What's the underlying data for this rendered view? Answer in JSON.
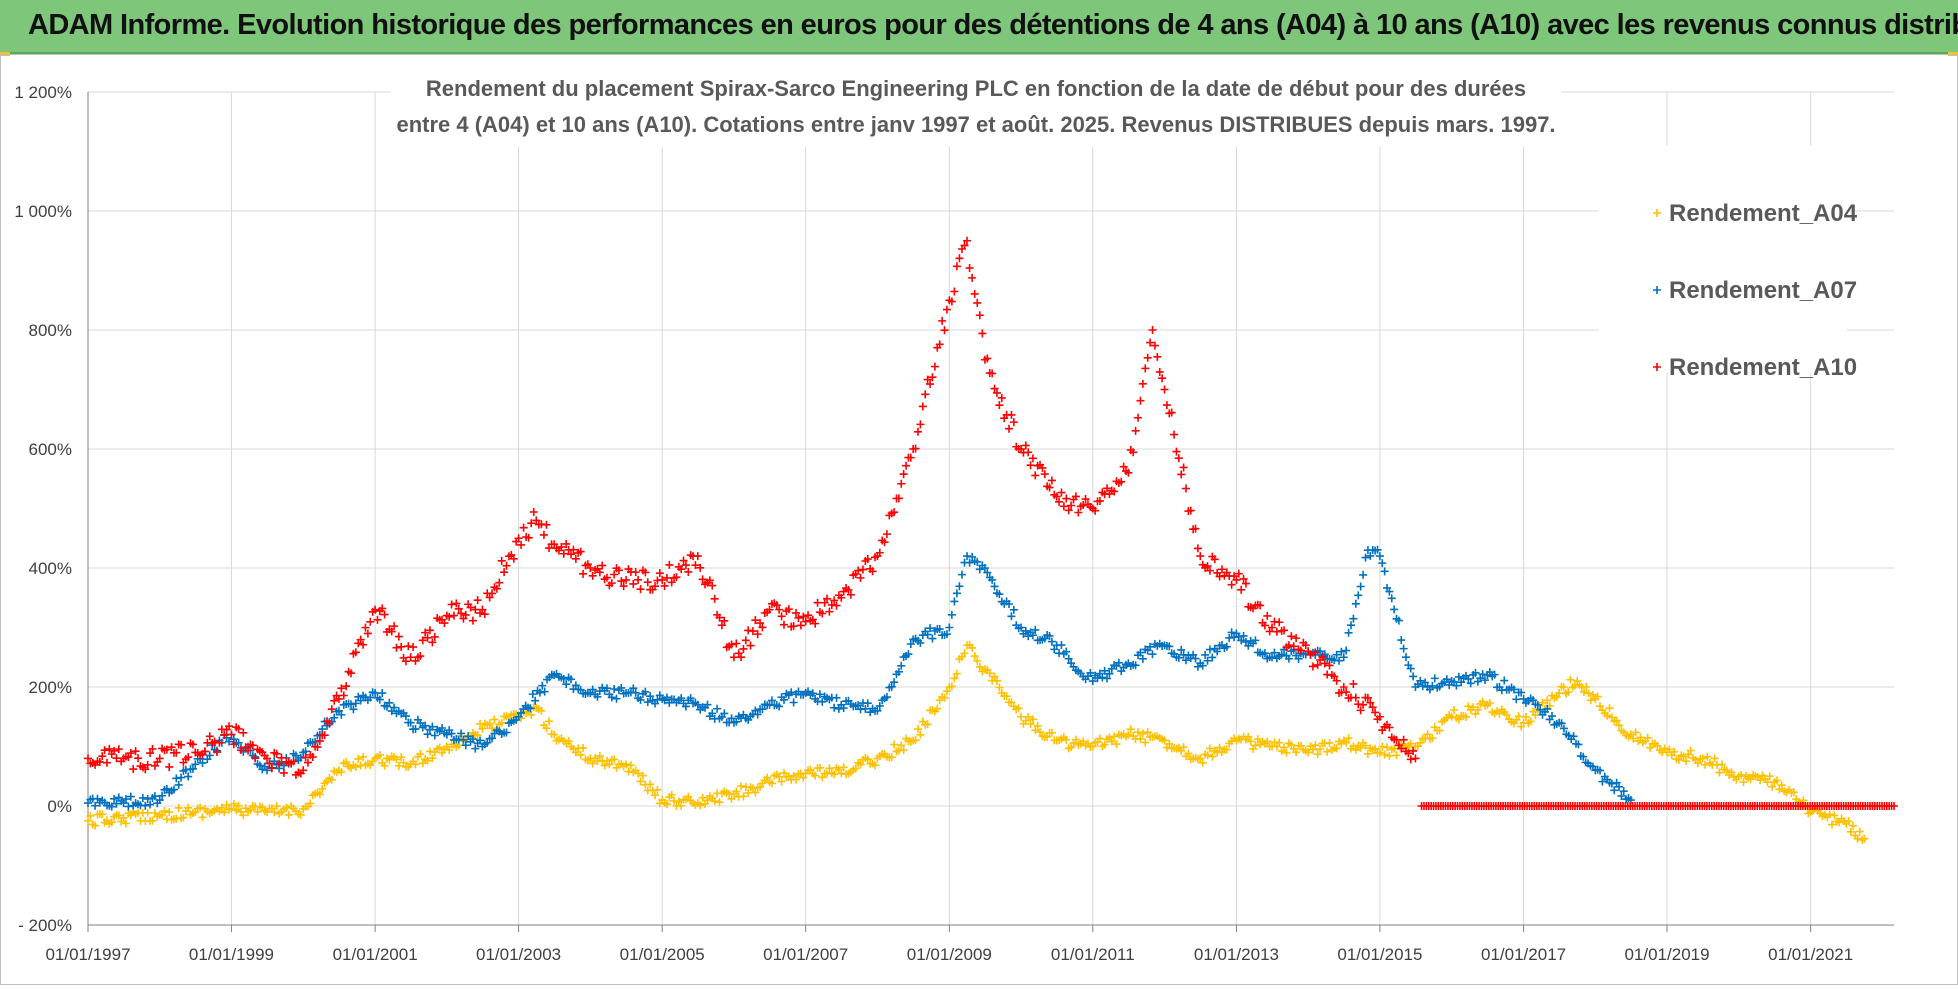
{
  "banner": {
    "title": "ADAM Informe. Evolution historique des performances en euros pour des détentions de 4 ans (A04) à 10 ans (A10) avec les revenus connus distribués"
  },
  "colors": {
    "banner_bg": "#7dc67a",
    "A04": "#ffc000",
    "A07": "#0070c0",
    "A10": "#ff0000",
    "grid": "#d9d9d9"
  },
  "chart_data": {
    "type": "scatter",
    "title_line1": "Rendement du placement Spirax-Sarco Engineering PLC en fonction de la date de début pour des durées",
    "title_line2": "entre 4 (A04) et 10 ans (A10). Cotations entre janv 1997 et août. 2025. Revenus DISTRIBUES depuis mars. 1997.",
    "marker": "+",
    "legend_position": "top-right",
    "grid": true,
    "xlim": [
      "1997-01-01",
      "2022-03-01"
    ],
    "ylim": [
      -200,
      1200
    ],
    "y_ticks": [
      -200,
      0,
      200,
      400,
      600,
      800,
      1000,
      1200
    ],
    "y_tick_labels": [
      "- 200%",
      "0%",
      "200%",
      "400%",
      "600%",
      "800%",
      "1 000%",
      "1 200%"
    ],
    "x_tick_labels": [
      "01/01/1997",
      "01/01/1999",
      "01/01/2001",
      "01/01/2003",
      "01/01/2005",
      "01/01/2007",
      "01/01/2009",
      "01/01/2011",
      "01/01/2013",
      "01/01/2015",
      "01/01/2017",
      "01/01/2019",
      "01/01/2021"
    ],
    "series": [
      {
        "name": "Rendement_A04",
        "color": "#ffc000",
        "x": [
          "1997-01-01",
          "1997-07-01",
          "1998-01-01",
          "1998-07-01",
          "1999-01-01",
          "1999-07-01",
          "2000-01-01",
          "2000-07-01",
          "2001-01-01",
          "2001-07-01",
          "2002-01-01",
          "2002-07-01",
          "2003-01-01",
          "2003-04-01",
          "2003-07-01",
          "2004-01-01",
          "2004-07-01",
          "2005-01-01",
          "2005-07-01",
          "2006-01-01",
          "2006-07-01",
          "2007-01-01",
          "2007-07-01",
          "2008-01-01",
          "2008-07-01",
          "2009-01-01",
          "2009-04-01",
          "2009-07-01",
          "2010-01-01",
          "2010-07-01",
          "2011-01-01",
          "2011-07-01",
          "2012-01-01",
          "2012-07-01",
          "2013-01-01",
          "2013-07-01",
          "2014-01-01",
          "2014-07-01",
          "2015-01-01",
          "2015-07-01",
          "2016-01-01",
          "2016-07-01",
          "2017-01-01",
          "2017-07-01",
          "2017-10-01",
          "2018-01-01",
          "2018-07-01",
          "2019-01-01",
          "2019-07-01",
          "2020-01-01",
          "2020-07-01",
          "2021-01-01",
          "2021-07-01",
          "2021-10-01"
        ],
        "values": [
          -25,
          -20,
          -15,
          -10,
          -5,
          -10,
          -5,
          60,
          80,
          70,
          100,
          130,
          150,
          165,
          120,
          80,
          70,
          10,
          5,
          20,
          40,
          55,
          55,
          80,
          110,
          200,
          270,
          230,
          150,
          110,
          100,
          120,
          110,
          80,
          110,
          100,
          90,
          110,
          90,
          100,
          150,
          170,
          140,
          190,
          210,
          180,
          120,
          90,
          80,
          50,
          40,
          -10,
          -30,
          -55
        ]
      },
      {
        "name": "Rendement_A07",
        "color": "#0070c0",
        "x": [
          "1997-01-01",
          "1997-07-01",
          "1998-01-01",
          "1998-07-01",
          "1999-01-01",
          "1999-07-01",
          "2000-01-01",
          "2000-07-01",
          "2001-01-01",
          "2001-07-01",
          "2002-01-01",
          "2002-07-01",
          "2003-01-01",
          "2003-07-01",
          "2004-01-01",
          "2004-07-01",
          "2005-01-01",
          "2005-07-01",
          "2006-01-01",
          "2006-07-01",
          "2007-01-01",
          "2007-07-01",
          "2008-01-01",
          "2008-07-01",
          "2009-01-01",
          "2009-04-01",
          "2009-07-01",
          "2010-01-01",
          "2010-07-01",
          "2011-01-01",
          "2011-07-01",
          "2012-01-01",
          "2012-07-01",
          "2013-01-01",
          "2013-07-01",
          "2014-01-01",
          "2014-07-01",
          "2014-11-01",
          "2015-01-01",
          "2015-07-01",
          "2016-01-01",
          "2016-07-01",
          "2017-01-01",
          "2017-07-01",
          "2018-01-01",
          "2018-07-01"
        ],
        "values": [
          5,
          5,
          10,
          70,
          120,
          60,
          90,
          160,
          190,
          140,
          120,
          100,
          150,
          220,
          190,
          190,
          180,
          170,
          140,
          170,
          190,
          170,
          160,
          280,
          300,
          420,
          400,
          300,
          270,
          210,
          240,
          270,
          240,
          290,
          250,
          260,
          250,
          430,
          420,
          200,
          210,
          220,
          180,
          140,
          60,
          10
        ]
      },
      {
        "name": "Rendement_A10",
        "color": "#ff0000",
        "x": [
          "1997-01-01",
          "1997-07-01",
          "1998-01-01",
          "1998-07-01",
          "1999-01-01",
          "1999-07-01",
          "2000-01-01",
          "2000-07-01",
          "2001-01-01",
          "2001-07-01",
          "2002-01-01",
          "2002-07-01",
          "2003-01-01",
          "2003-04-01",
          "2003-07-01",
          "2004-01-01",
          "2004-07-01",
          "2005-01-01",
          "2005-07-01",
          "2006-01-01",
          "2006-07-01",
          "2007-01-01",
          "2007-07-01",
          "2008-01-01",
          "2008-07-01",
          "2009-01-01",
          "2009-04-01",
          "2009-07-01",
          "2010-01-01",
          "2010-07-01",
          "2011-01-01",
          "2011-07-01",
          "2011-11-01",
          "2012-01-01",
          "2012-07-01",
          "2013-01-01",
          "2013-07-01",
          "2014-01-01",
          "2014-07-01",
          "2015-01-01",
          "2015-07-01"
        ],
        "values": [
          80,
          80,
          80,
          90,
          120,
          80,
          60,
          180,
          330,
          250,
          320,
          330,
          450,
          480,
          440,
          400,
          380,
          380,
          420,
          250,
          330,
          310,
          350,
          420,
          600,
          850,
          950,
          750,
          600,
          520,
          500,
          560,
          800,
          700,
          420,
          380,
          300,
          260,
          200,
          150,
          80
        ]
      },
      {
        "name": "",
        "legend": false,
        "color": "#ff0000",
        "x": [
          "2015-08-01",
          "2022-03-01"
        ],
        "values": [
          0,
          0
        ]
      }
    ]
  }
}
